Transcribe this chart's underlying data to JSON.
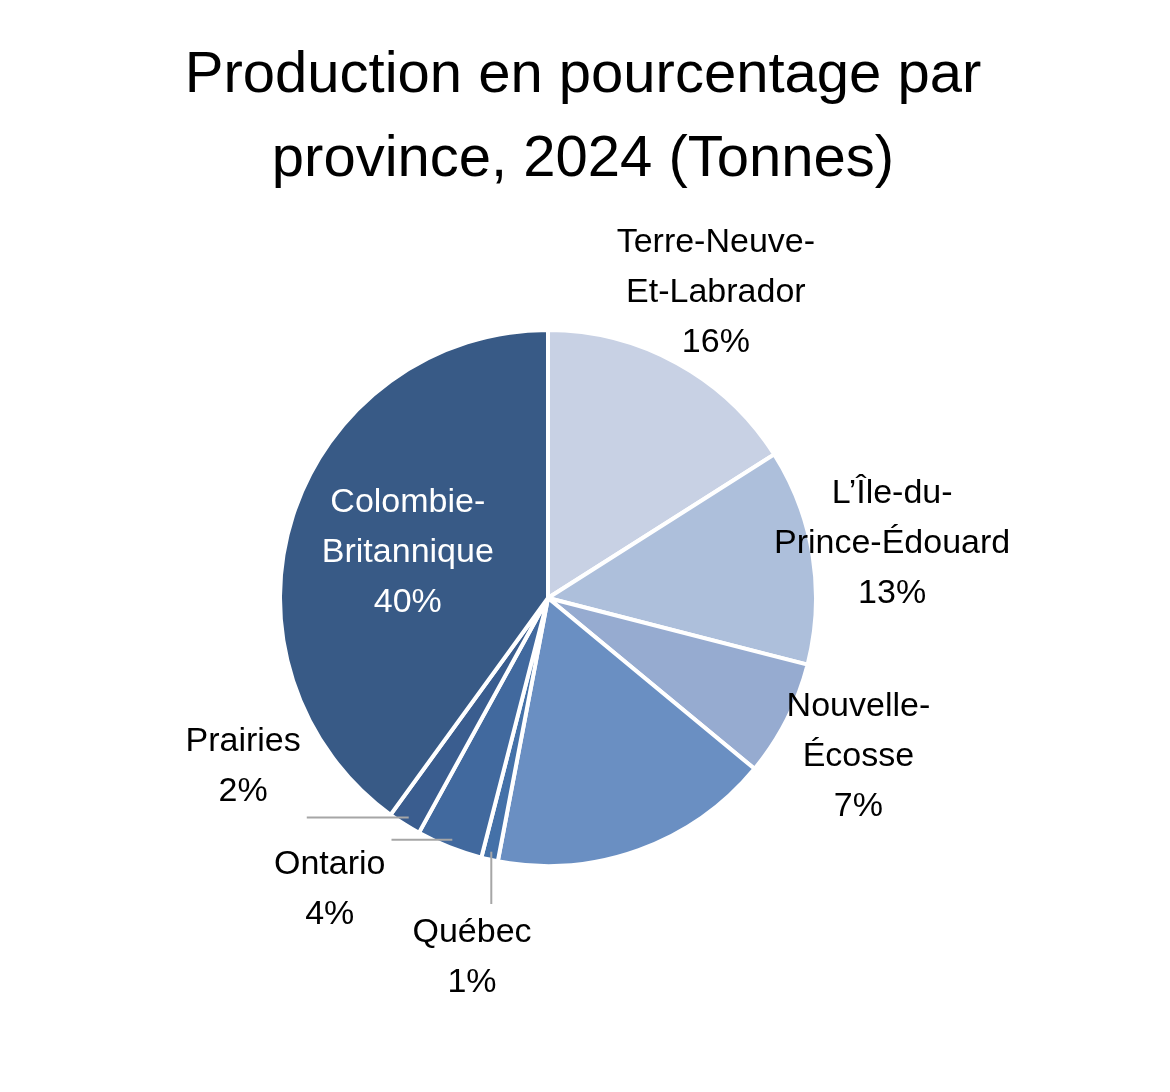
{
  "chart_data": {
    "type": "pie",
    "title": "Production en pourcentage par province, 2024 (Tonnes)",
    "categories": [
      "Terre-Neuve-Et-Labrador",
      "L’Île-du-Prince-Édouard",
      "Nouvelle-Écosse",
      null,
      "Québec",
      "Ontario",
      "Prairies",
      "Colombie-Britannique"
    ],
    "values": [
      16,
      13,
      7,
      17,
      1,
      4,
      2,
      40
    ],
    "value_labels": [
      "16%",
      "13%",
      "7%",
      null,
      "1%",
      "4%",
      "2%",
      "40%"
    ],
    "colors": [
      "#c8d1e4",
      "#adbfdb",
      "#96abd0",
      "#6a8fc2",
      "#4471a8",
      "#41699e",
      "#3a5d8f",
      "#385a86"
    ],
    "legend": false
  }
}
